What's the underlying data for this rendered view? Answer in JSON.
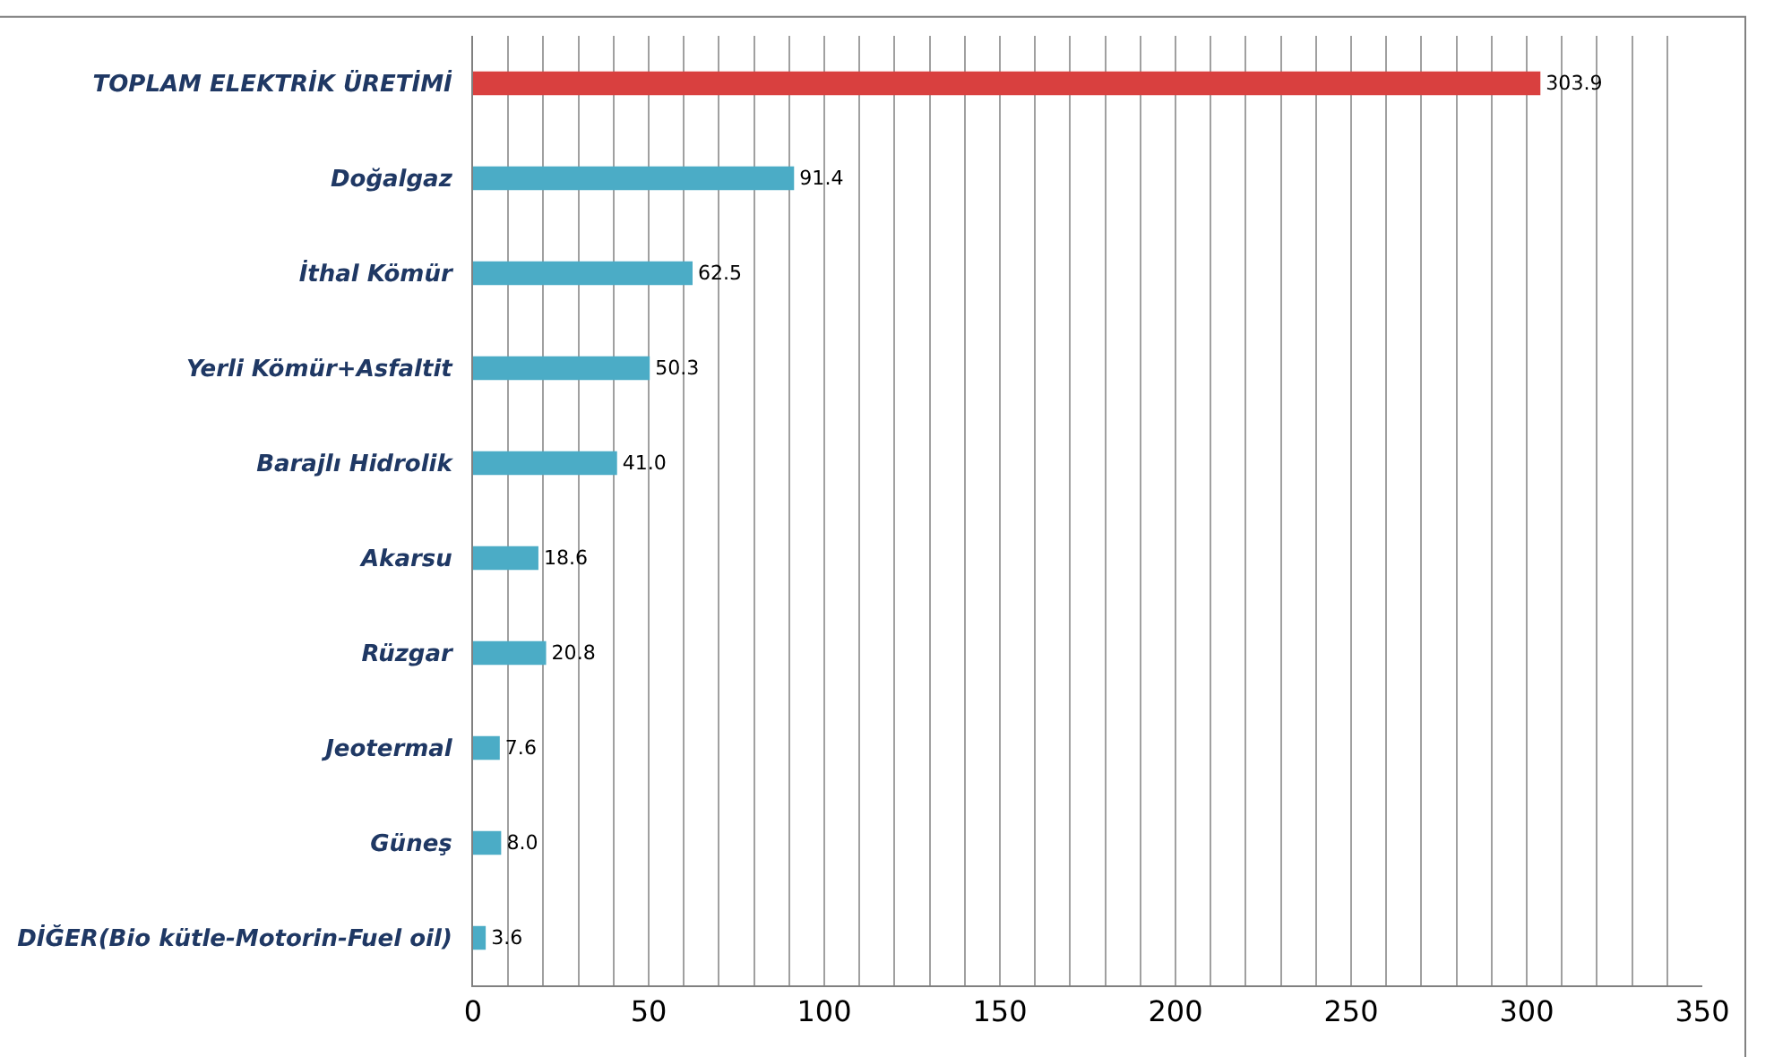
{
  "chart_data": {
    "type": "bar",
    "orientation": "horizontal",
    "categories": [
      "TOPLAM ELEKTRİK ÜRETİMİ",
      "Doğalgaz",
      "İthal Kömür",
      "Yerli Kömür+Asfaltit",
      "Barajlı Hidrolik",
      "Akarsu",
      "Rüzgar",
      "Jeotermal",
      "Güneş",
      "DİĞER(Bio kütle-Motorin-Fuel oil)"
    ],
    "values": [
      303.9,
      91.4,
      62.5,
      50.3,
      41.0,
      18.6,
      20.8,
      7.6,
      8.0,
      3.6
    ],
    "value_labels": [
      "303.9",
      "91.4",
      "62.5",
      "50.3",
      "41.0",
      "18.6",
      "20.8",
      "7.6",
      "8.0",
      "3.6"
    ],
    "colors": [
      "#d9403f",
      "#4bacc6",
      "#4bacc6",
      "#4bacc6",
      "#4bacc6",
      "#4bacc6",
      "#4bacc6",
      "#4bacc6",
      "#4bacc6",
      "#4bacc6"
    ],
    "xlim": [
      0,
      350
    ],
    "xticks": [
      0,
      {
        "value": 10,
        "label": null
      },
      {
        "value": 20,
        "label": null
      },
      {
        "value": 30,
        "label": null
      },
      {
        "value": 40,
        "label": null
      },
      50,
      {
        "value": 60,
        "label": null
      },
      {
        "value": 70,
        "label": null
      },
      {
        "value": 80,
        "label": null
      },
      {
        "value": 90,
        "label": null
      },
      100,
      {
        "value": 110,
        "label": null
      },
      {
        "value": 120,
        "label": null
      },
      {
        "value": 130,
        "label": null
      },
      {
        "value": 140,
        "label": null
      },
      150,
      {
        "value": 160,
        "label": null
      },
      {
        "value": 170,
        "label": null
      },
      {
        "value": 180,
        "label": null
      },
      {
        "value": 190,
        "label": null
      },
      200,
      {
        "value": 210,
        "label": null
      },
      {
        "value": 220,
        "label": null
      },
      {
        "value": 230,
        "label": null
      },
      {
        "value": 240,
        "label": null
      },
      250,
      {
        "value": 260,
        "label": null
      },
      {
        "value": 270,
        "label": null
      },
      {
        "value": 280,
        "label": null
      },
      {
        "value": 290,
        "label": null
      },
      300,
      {
        "value": 310,
        "label": null
      },
      {
        "value": 320,
        "label": null
      },
      {
        "value": 330,
        "label": null
      },
      {
        "value": 340,
        "label": null
      },
      350
    ],
    "grid": "x"
  }
}
